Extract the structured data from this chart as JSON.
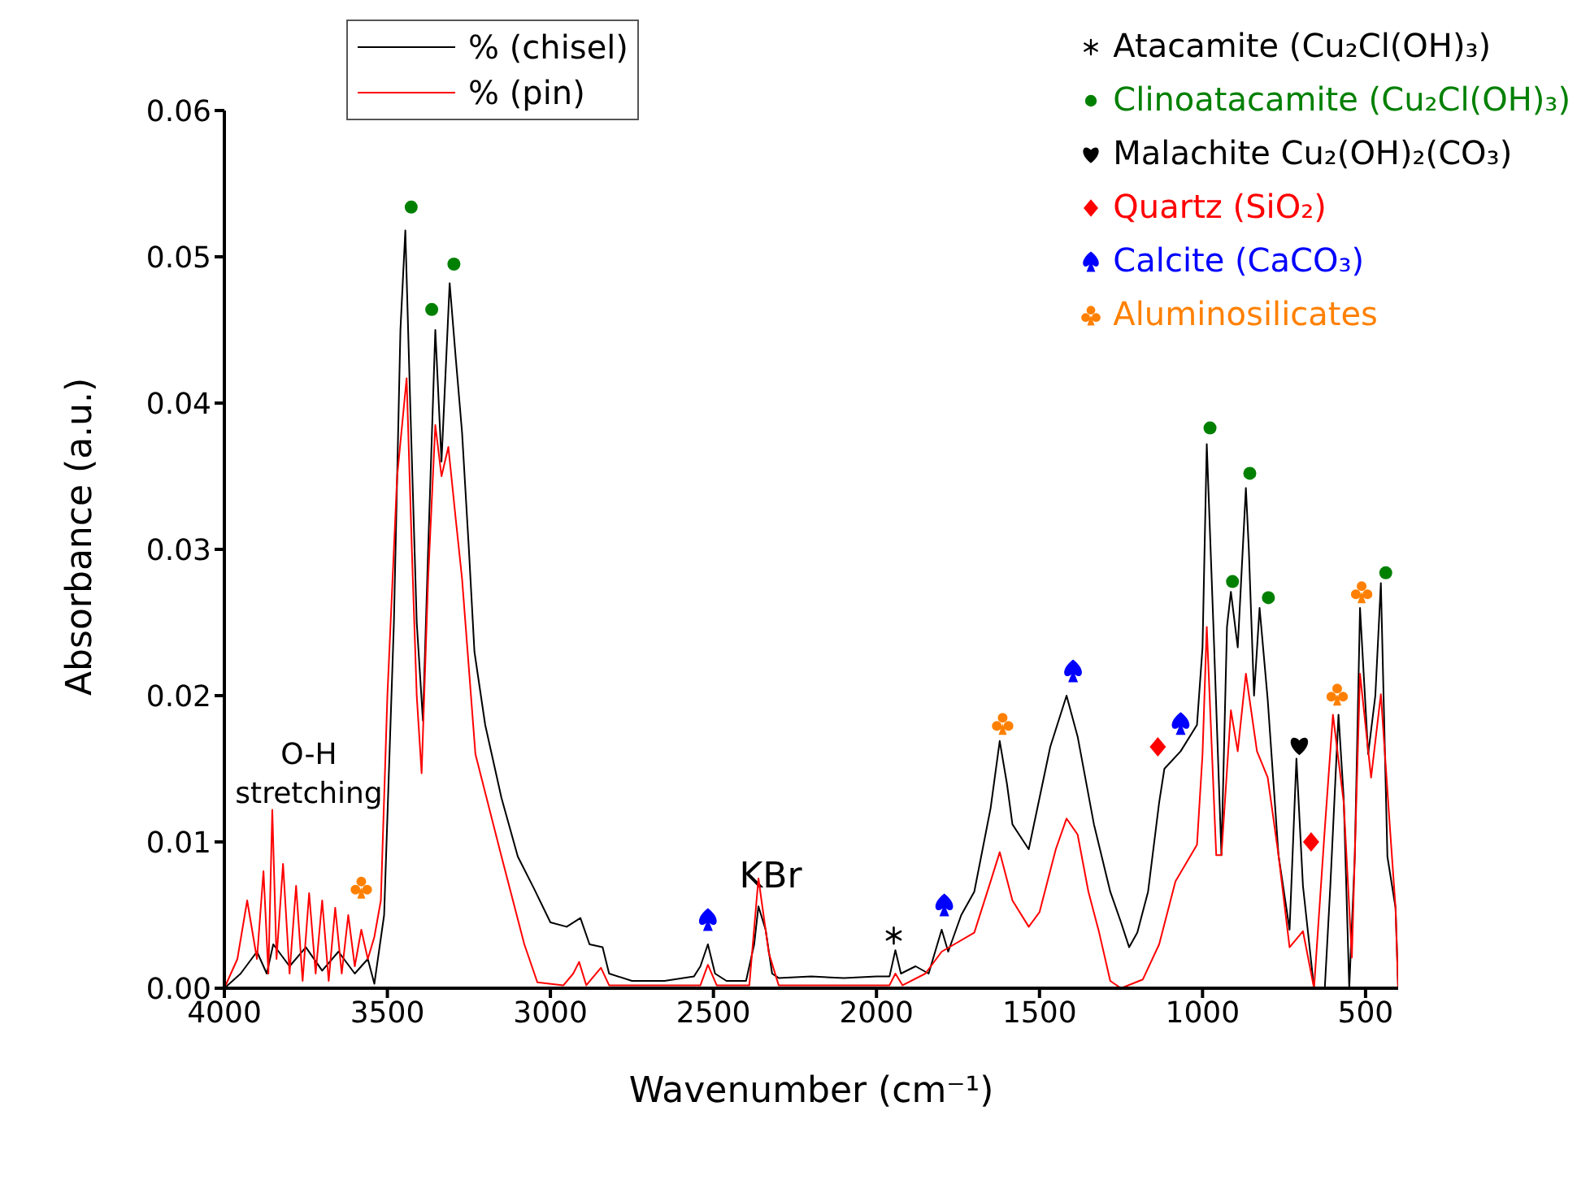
{
  "chart_data": {
    "type": "line",
    "xlabel": "Wavenumber (cm⁻¹)",
    "ylabel": "Absorbance (a.u.)",
    "xlim": [
      4000,
      400
    ],
    "xticks": [
      4000,
      3500,
      3000,
      2500,
      2000,
      1500,
      1000,
      500
    ],
    "ylim": [
      0,
      0.06
    ],
    "yticks": [
      {
        "value": 0,
        "label": "0.00"
      },
      {
        "value": 0.01,
        "label": "0.01"
      },
      {
        "value": 0.02,
        "label": "0.02"
      },
      {
        "value": 0.03,
        "label": "0.03"
      },
      {
        "value": 0.04,
        "label": "0.04"
      },
      {
        "value": 0.05,
        "label": "0.05"
      },
      {
        "value": 0.06,
        "label": "0.06"
      }
    ],
    "legend": "top right",
    "grid": false,
    "line_style": "solid",
    "annotations": [
      "O-H\nstretching",
      "KBr"
    ],
    "series": [
      {
        "name": "% (chisel)",
        "color": "#000000",
        "x": [
          4000,
          3950,
          3900,
          3870,
          3850,
          3800,
          3750,
          3700,
          3650,
          3600,
          3560,
          3540,
          3510,
          3480,
          3460,
          3445,
          3430,
          3410,
          3391,
          3375,
          3353,
          3334,
          3309,
          3290,
          3271,
          3250,
          3233,
          3200,
          3150,
          3100,
          3050,
          3000,
          2950,
          2908,
          2880,
          2840,
          2820,
          2750,
          2650,
          2560,
          2540,
          2517,
          2495,
          2460,
          2400,
          2375,
          2362,
          2340,
          2320,
          2300,
          2200,
          2100,
          2000,
          1960,
          1942,
          1925,
          1880,
          1840,
          1800,
          1780,
          1740,
          1700,
          1650,
          1622,
          1600,
          1583,
          1533,
          1500,
          1467,
          1417,
          1383,
          1333,
          1283,
          1250,
          1225,
          1200,
          1167,
          1133,
          1117,
          1067,
          1017,
          1000,
          987,
          967,
          942,
          925,
          913,
          892,
          867,
          858,
          842,
          825,
          800,
          767,
          733,
          712,
          692,
          658,
          625,
          608,
          583,
          567,
          550,
          533,
          517,
          492,
          470,
          453,
          433,
          408,
          400
        ],
        "values": [
          0,
          0.001,
          0.0025,
          0.001,
          0.003,
          0.0015,
          0.0028,
          0.0012,
          0.0025,
          0.001,
          0.002,
          0.0003,
          0.005,
          0.025,
          0.045,
          0.0518,
          0.04,
          0.025,
          0.0183,
          0.03,
          0.045,
          0.036,
          0.0482,
          0.043,
          0.038,
          0.03,
          0.023,
          0.018,
          0.013,
          0.009,
          0.0068,
          0.0045,
          0.0042,
          0.0048,
          0.003,
          0.0028,
          0.001,
          0.0005,
          0.0005,
          0.0008,
          0.0015,
          0.003,
          0.001,
          0.0005,
          0.0005,
          0.003,
          0.0056,
          0.004,
          0.001,
          0.0007,
          0.0008,
          0.0007,
          0.0008,
          0.0008,
          0.0026,
          0.001,
          0.0015,
          0.001,
          0.004,
          0.0025,
          0.005,
          0.0066,
          0.0123,
          0.0169,
          0.014,
          0.0112,
          0.0095,
          0.013,
          0.0165,
          0.02,
          0.0172,
          0.0112,
          0.0066,
          0.0045,
          0.0028,
          0.0038,
          0.0066,
          0.0127,
          0.015,
          0.0162,
          0.018,
          0.0233,
          0.0372,
          0.025,
          0.0091,
          0.0247,
          0.0271,
          0.0233,
          0.0342,
          0.03,
          0.02,
          0.026,
          0.0197,
          0.0091,
          0.004,
          0.0157,
          0.007,
          0,
          0,
          0.007,
          0.0187,
          0.013,
          0,
          0.009,
          0.026,
          0.016,
          0.02,
          0.0277,
          0.009,
          0.0055,
          0
        ]
      },
      {
        "name": "% (pin)",
        "color": "#ff0000",
        "x": [
          4000,
          3960,
          3930,
          3900,
          3880,
          3865,
          3853,
          3840,
          3820,
          3800,
          3780,
          3760,
          3740,
          3720,
          3700,
          3680,
          3660,
          3640,
          3620,
          3600,
          3580,
          3560,
          3540,
          3520,
          3500,
          3470,
          3441,
          3425,
          3410,
          3395,
          3375,
          3353,
          3334,
          3313,
          3290,
          3271,
          3230,
          3150,
          3080,
          3040,
          2960,
          2930,
          2912,
          2890,
          2845,
          2820,
          2700,
          2540,
          2517,
          2490,
          2390,
          2362,
          2330,
          2300,
          2100,
          1960,
          1942,
          1920,
          1850,
          1800,
          1700,
          1650,
          1622,
          1583,
          1533,
          1500,
          1450,
          1417,
          1383,
          1350,
          1317,
          1283,
          1250,
          1183,
          1133,
          1083,
          1017,
          1000,
          987,
          958,
          942,
          913,
          892,
          867,
          833,
          800,
          767,
          733,
          692,
          658,
          625,
          600,
          567,
          542,
          517,
          483,
          453,
          425,
          408,
          400
        ],
        "values": [
          0,
          0.002,
          0.006,
          0.002,
          0.008,
          0.001,
          0.0122,
          0.002,
          0.0085,
          0.001,
          0.007,
          0.0005,
          0.0065,
          0.001,
          0.006,
          0.0005,
          0.0055,
          0.001,
          0.005,
          0.0015,
          0.004,
          0.002,
          0.0035,
          0.006,
          0.02,
          0.035,
          0.0417,
          0.03,
          0.02,
          0.0147,
          0.028,
          0.0385,
          0.035,
          0.037,
          0.032,
          0.028,
          0.016,
          0.009,
          0.003,
          0.0004,
          0.0002,
          0.001,
          0.0018,
          0.0002,
          0.0014,
          0.0002,
          0.0002,
          0.0002,
          0.0016,
          0.0002,
          0.0002,
          0.0075,
          0.0024,
          0.0002,
          0.0002,
          0.0002,
          0.001,
          0.0002,
          0.001,
          0.0025,
          0.0038,
          0.0073,
          0.0093,
          0.006,
          0.0042,
          0.0052,
          0.0095,
          0.0116,
          0.0105,
          0.0066,
          0.0038,
          0.0005,
          0,
          0.0006,
          0.003,
          0.0073,
          0.0098,
          0.016,
          0.0247,
          0.0091,
          0.0091,
          0.019,
          0.0162,
          0.0215,
          0.0162,
          0.0144,
          0.0091,
          0.0028,
          0.0039,
          0,
          0.0109,
          0.0187,
          0.0127,
          0.0021,
          0.0215,
          0.0144,
          0.0201,
          0.0109,
          0.0055,
          0
        ]
      },
      {
        "name": "Atacamite (Cu₂Cl(OH)₃)",
        "type": "scatter",
        "marker": "cross",
        "color": "#000000",
        "x": [
          1947
        ],
        "values": [
          0.0036
        ]
      },
      {
        "name": "Clinoatacamite (Cu₂Cl(OH)₃)",
        "type": "scatter",
        "marker": "circle",
        "color": "#008000",
        "x": [
          3427,
          3364,
          3296,
          977,
          908,
          855,
          798,
          438
        ],
        "values": [
          0.0534,
          0.0464,
          0.0495,
          0.0383,
          0.0278,
          0.0352,
          0.0267,
          0.0284
        ]
      },
      {
        "name": "Malachite Cu₂(OH)₂(CO₃)",
        "type": "scatter",
        "color": "#000000",
        "x": [
          703
        ],
        "values": [
          0.0166
        ]
      },
      {
        "name": "Quartz (SiO₂)",
        "type": "scatter",
        "marker": "diamond",
        "color": "#ff0000",
        "x": [
          1137,
          667
        ],
        "values": [
          0.0165,
          0.01
        ]
      },
      {
        "name": "Calcite (CaCO₃)",
        "type": "scatter",
        "color": "#0000ff",
        "x": [
          2517,
          1792,
          1397,
          1067
        ],
        "values": [
          0.0047,
          0.0057,
          0.0217,
          0.0181
        ]
      },
      {
        "name": "Aluminosilicates",
        "type": "scatter",
        "color": "#ff8000",
        "x": [
          3580,
          1613,
          587,
          512
        ],
        "values": [
          0.0069,
          0.0181,
          0.0201,
          0.0271
        ]
      }
    ]
  }
}
